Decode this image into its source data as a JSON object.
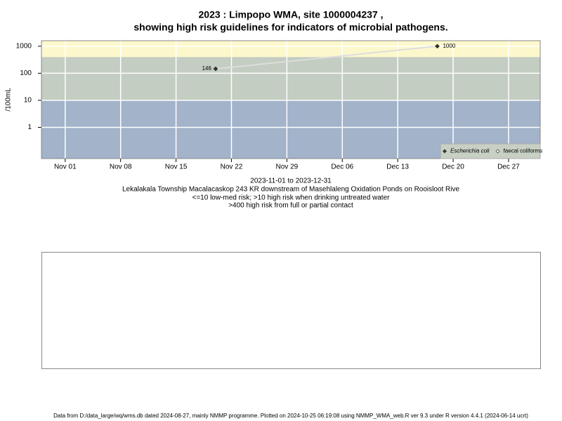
{
  "chart_data": {
    "type": "line",
    "title": "2023 : Limpopo WMA, site 1000004237 ,",
    "subtitle": "showing high risk guidelines for indicators of microbial pathogens.",
    "y_label": "/100mL",
    "log_y": true,
    "ylim": [
      0.07,
      1600
    ],
    "yticks": [
      1,
      10,
      100,
      1000
    ],
    "xlim": [
      "2023-10-29",
      "2023-12-31"
    ],
    "xticks": [
      {
        "value": "2023-11-01",
        "label": "Nov 01"
      },
      {
        "value": "2023-11-08",
        "label": "Nov 08"
      },
      {
        "value": "2023-11-15",
        "label": "Nov 15"
      },
      {
        "value": "2023-11-22",
        "label": "Nov 22"
      },
      {
        "value": "2023-11-29",
        "label": "Nov 29"
      },
      {
        "value": "2023-12-06",
        "label": "Dec 06"
      },
      {
        "value": "2023-12-13",
        "label": "Dec 13"
      },
      {
        "value": "2023-12-20",
        "label": "Dec 20"
      },
      {
        "value": "2023-12-27",
        "label": "Dec 27"
      }
    ],
    "grid": true,
    "thresholds": [
      10,
      400
    ],
    "band_colors": [
      "#a2b3ca",
      "#c4cdc1",
      "#fdf8cc"
    ],
    "x": [
      "2023-11-20",
      "2023-12-18"
    ],
    "series": [
      {
        "name": "Escherichia coli",
        "color": "#333333",
        "line_color": "#dddddd",
        "values": [
          146,
          1000
        ]
      },
      {
        "name": "faecal coliforms",
        "color": "#333333",
        "values": [
          null,
          null
        ]
      }
    ],
    "legend": "bottom-right",
    "notes": [
      "2023-11-01 to 2023-12-31",
      "Lekalakala Township Macalacaskop 243 KR downstream of Masehlaleng Oxidation Ponds on Rooisloot Rive",
      "<=10 low-med risk; >10 high risk when drinking untreated water",
      ">400 high risk from full or partial contact"
    ]
  },
  "footer": "Data from D:/data_large/wq/wms.db dated 2024-08-27, mainly NMMP programme. Plotted on 2024-10-25 06:19:08 using NMMP_WMA_web.R ver 9.3 under R version 4.4.1 (2024-06-14 ucrt)"
}
